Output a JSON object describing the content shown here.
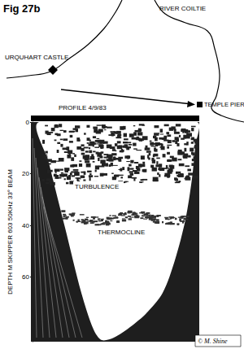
{
  "figure_label": "Fig 27b",
  "map": {
    "places": [
      "URQUHART CASTLE",
      "RIVER COILTIE",
      "TEMPLE PIER"
    ]
  },
  "chart_data": {
    "type": "echogram",
    "title": "PROFILE 4/9/83",
    "y_label": "DEPTH M SKIPPER 603 50KHz 33° BEAM",
    "ylim": [
      0,
      85
    ],
    "yticks": [
      0,
      20,
      40,
      60
    ],
    "annotations": [
      "TURBULENCE",
      "THERMOCLINE"
    ]
  },
  "credit": "© M. Shine"
}
